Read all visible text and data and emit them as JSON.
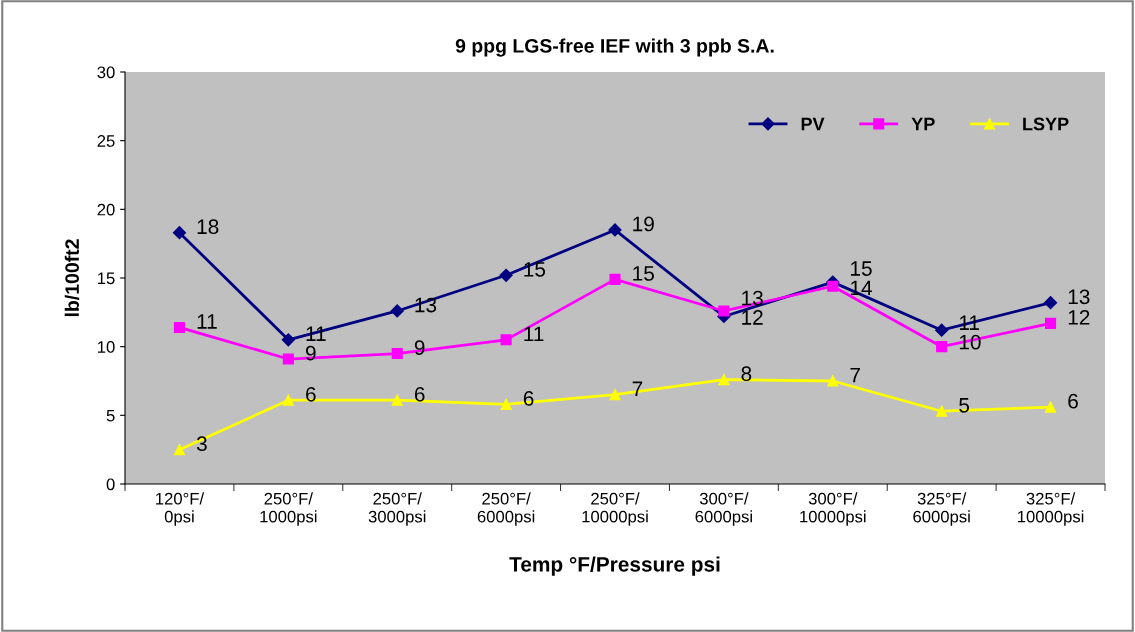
{
  "chart_data": {
    "type": "line",
    "title": "9 ppg LGS-free IEF with 3 ppb S.A.",
    "xlabel": "Temp °F/Pressure psi",
    "ylabel": "lb/100ft2",
    "categories": [
      "120°F/\n0psi",
      "250°F/\n1000psi",
      "250°F/\n3000psi",
      "250°F/\n6000psi",
      "250°F/\n10000psi",
      "300°F/\n6000psi",
      "300°F/\n10000psi",
      "325°F/\n6000psi",
      "325°F/\n10000psi"
    ],
    "series": [
      {
        "name": "PV",
        "color": "#000080",
        "marker": "diamond",
        "values": [
          18.3,
          10.5,
          12.6,
          15.2,
          18.5,
          12.2,
          14.7,
          11.2,
          13.2
        ],
        "value_labels": [
          "18",
          "11",
          "13",
          "15",
          "19",
          "12",
          "15",
          "11",
          "13"
        ]
      },
      {
        "name": "YP",
        "color": "#ff00ff",
        "marker": "square",
        "values": [
          11.4,
          9.1,
          9.5,
          10.5,
          14.9,
          12.6,
          14.4,
          10.0,
          11.7
        ],
        "value_labels": [
          "11",
          "9",
          "9",
          "11",
          "15",
          "13",
          "14",
          "10",
          "12"
        ]
      },
      {
        "name": "LSYP",
        "color": "#ffff00",
        "marker": "triangle",
        "values": [
          2.5,
          6.1,
          6.1,
          5.8,
          6.5,
          7.6,
          7.5,
          5.3,
          5.6
        ],
        "value_labels": [
          "3",
          "6",
          "6",
          "6",
          "7",
          "8",
          "7",
          "5",
          "6"
        ]
      }
    ],
    "ylim": [
      0,
      30
    ],
    "yticks": [
      0,
      5,
      10,
      15,
      20,
      25,
      30
    ],
    "grid": false,
    "legend": "top right",
    "line_style": "solid"
  }
}
